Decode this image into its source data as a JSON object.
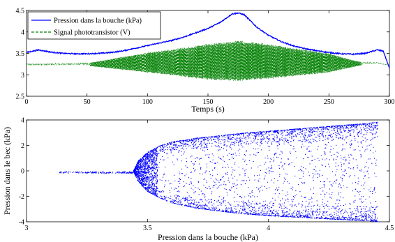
{
  "chart_data": [
    {
      "type": "line",
      "title": "",
      "xlabel": "Temps (s)",
      "ylabel": "",
      "xlim": [
        0,
        300
      ],
      "ylim": [
        2.5,
        4.5
      ],
      "xticks": [
        0,
        50,
        100,
        150,
        200,
        250,
        300
      ],
      "yticks": [
        2.5,
        3,
        3.5,
        4,
        4.5
      ],
      "legend_position": "top-left",
      "series": [
        {
          "name": "Pression dans la bouche (kPa)",
          "color": "#0000ff",
          "style": "solid",
          "x": [
            0,
            10,
            20,
            30,
            40,
            50,
            60,
            70,
            80,
            90,
            100,
            110,
            120,
            130,
            140,
            150,
            160,
            170,
            175,
            180,
            190,
            200,
            210,
            220,
            230,
            240,
            250,
            260,
            270,
            280,
            290,
            295,
            300
          ],
          "y": [
            3.52,
            3.58,
            3.53,
            3.5,
            3.49,
            3.49,
            3.5,
            3.52,
            3.56,
            3.62,
            3.68,
            3.74,
            3.8,
            3.88,
            3.98,
            4.08,
            4.22,
            4.42,
            4.44,
            4.4,
            4.12,
            3.92,
            3.78,
            3.68,
            3.61,
            3.56,
            3.52,
            3.49,
            3.48,
            3.5,
            3.58,
            3.55,
            3.15
          ]
        },
        {
          "name": "Signal phototransistor (V)",
          "color": "#008000",
          "style": "dashed",
          "baseline": {
            "x": [
              0,
              40,
              50,
              100,
              150,
              175,
              200,
              250,
              270,
              290,
              300
            ],
            "y": [
              3.24,
              3.25,
              3.25,
              3.24,
              3.23,
              3.25,
              3.24,
              3.25,
              3.27,
              3.28,
              3.22
            ]
          },
          "upper_envelope": {
            "x": [
              0,
              40,
              50,
              100,
              150,
              175,
              200,
              250,
              270,
              280,
              290,
              300
            ],
            "y": [
              3.26,
              3.26,
              3.27,
              3.52,
              3.72,
              3.8,
              3.72,
              3.5,
              3.34,
              3.28,
              3.29,
              3.22
            ]
          },
          "lower_envelope": {
            "x": [
              0,
              40,
              50,
              100,
              150,
              175,
              200,
              250,
              270,
              280,
              290,
              300
            ],
            "y": [
              3.22,
              3.22,
              3.21,
              3.05,
              2.88,
              2.85,
              2.9,
              3.05,
              3.18,
              3.24,
              3.26,
              3.22
            ]
          }
        }
      ]
    },
    {
      "type": "scatter",
      "title": "",
      "xlabel": "Pression dans la bouche (kPa)",
      "ylabel": "Pression dans le bec (kPa)",
      "xlim": [
        3,
        4.5
      ],
      "ylim": [
        -4,
        4
      ],
      "xticks": [
        3,
        3.5,
        4,
        4.5
      ],
      "yticks": [
        -4,
        -2,
        0,
        2,
        4
      ],
      "color": "#0000ff",
      "series": [
        {
          "name": "",
          "points_description": "cloud",
          "static_segment": {
            "x": [
              3.13,
              3.44
            ],
            "y": [
              -0.1,
              -0.1
            ]
          },
          "upper_boundary": {
            "x": [
              3.44,
              3.46,
              3.5,
              3.55,
              3.6,
              3.7,
              3.8,
              3.9,
              4.0,
              4.1,
              4.2,
              4.3,
              4.4,
              4.45
            ],
            "y": [
              0.0,
              0.8,
              1.5,
              2.0,
              2.3,
              2.6,
              2.8,
              3.0,
              3.15,
              3.3,
              3.45,
              3.6,
              3.75,
              3.85
            ]
          },
          "lower_boundary": {
            "x": [
              3.44,
              3.46,
              3.5,
              3.55,
              3.6,
              3.7,
              3.8,
              3.9,
              4.0,
              4.1,
              4.2,
              4.3,
              4.4,
              4.45
            ],
            "y": [
              0.0,
              -0.8,
              -1.6,
              -2.1,
              -2.5,
              -2.9,
              -3.15,
              -3.35,
              -3.5,
              -3.6,
              -3.7,
              -3.8,
              -3.9,
              -3.95
            ]
          },
          "point_count": 4500
        }
      ]
    }
  ]
}
